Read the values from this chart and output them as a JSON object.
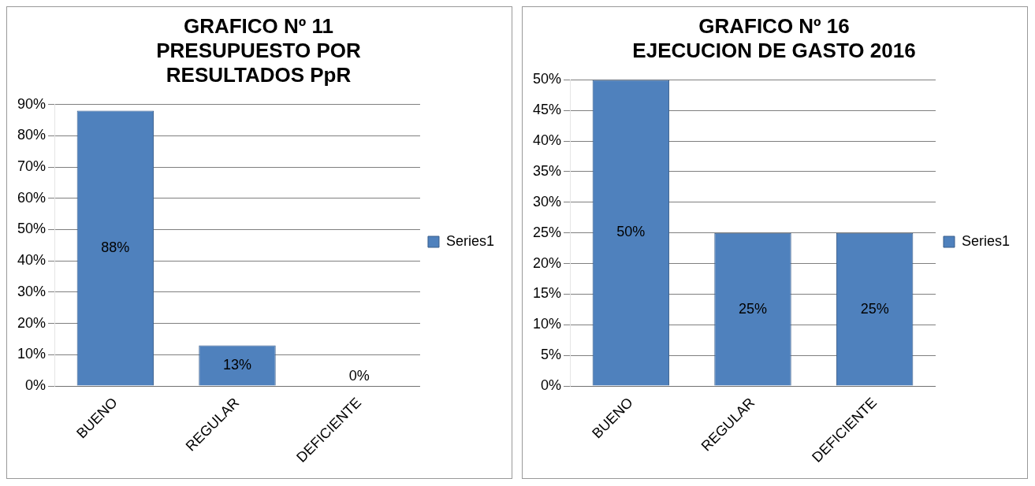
{
  "chart_data": [
    {
      "type": "bar",
      "title": "GRAFICO Nº 11\nPRESUPUESTO POR\nRESULTADOS PpR",
      "categories": [
        "BUENO",
        "REGULAR",
        "DEFICIENTE"
      ],
      "series": [
        {
          "name": "Series1",
          "color": "#4f81bd",
          "values": [
            88,
            13,
            0
          ],
          "value_labels": [
            "88%",
            "13%",
            "0%"
          ]
        }
      ],
      "ylim": [
        0,
        90
      ],
      "yticks": [
        {
          "value": 0,
          "label": "0%"
        },
        {
          "value": 10,
          "label": "10%"
        },
        {
          "value": 20,
          "label": "20%"
        },
        {
          "value": 30,
          "label": "30%"
        },
        {
          "value": 40,
          "label": "40%"
        },
        {
          "value": 50,
          "label": "50%"
        },
        {
          "value": 60,
          "label": "60%"
        },
        {
          "value": 70,
          "label": "70%"
        },
        {
          "value": 80,
          "label": "80%"
        },
        {
          "value": 90,
          "label": "90%"
        }
      ],
      "grid": "y",
      "legend": "right"
    },
    {
      "type": "bar",
      "title": "GRAFICO Nº 16\nEJECUCION DE GASTO 2016",
      "categories": [
        "BUENO",
        "REGULAR",
        "DEFICIENTE"
      ],
      "series": [
        {
          "name": "Series1",
          "color": "#4f81bd",
          "values": [
            50,
            25,
            25
          ],
          "value_labels": [
            "50%",
            "25%",
            "25%"
          ]
        }
      ],
      "ylim": [
        0,
        50
      ],
      "yticks": [
        {
          "value": 0,
          "label": "0%"
        },
        {
          "value": 5,
          "label": "5%"
        },
        {
          "value": 10,
          "label": "10%"
        },
        {
          "value": 15,
          "label": "15%"
        },
        {
          "value": 20,
          "label": "20%"
        },
        {
          "value": 25,
          "label": "25%"
        },
        {
          "value": 30,
          "label": "30%"
        },
        {
          "value": 35,
          "label": "35%"
        },
        {
          "value": 40,
          "label": "40%"
        },
        {
          "value": 45,
          "label": "45%"
        },
        {
          "value": 50,
          "label": "50%"
        }
      ],
      "grid": "y",
      "legend": "right"
    }
  ]
}
